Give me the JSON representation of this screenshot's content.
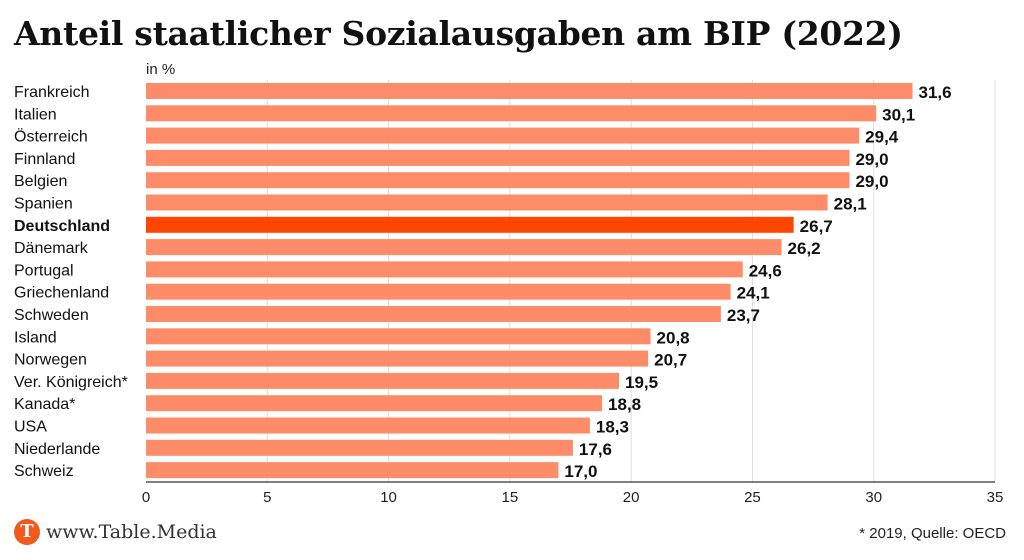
{
  "title": "Anteil staatlicher Sozialausgaben am BIP (2022)",
  "unit_label": "in %",
  "footer": {
    "logo_letter": "T",
    "logo_text": "www.Table.Media",
    "note": "* 2019, Quelle: OECD"
  },
  "colors": {
    "bar": "#ff8c69",
    "highlight": "#ff4500",
    "grid": "#dddddd",
    "logo": "#f05a1e"
  },
  "chart_data": {
    "type": "bar",
    "orientation": "horizontal",
    "categories": [
      "Frankreich",
      "Italien",
      "Österreich",
      "Finnland",
      "Belgien",
      "Spanien",
      "Deutschland",
      "Dänemark",
      "Portugal",
      "Griechenland",
      "Schweden",
      "Island",
      "Norwegen",
      "Ver. Königreich*",
      "Kanada*",
      "USA",
      "Niederlande",
      "Schweiz"
    ],
    "values": [
      31.6,
      30.1,
      29.4,
      29.0,
      29.0,
      28.1,
      26.7,
      26.2,
      24.6,
      24.1,
      23.7,
      20.8,
      20.7,
      19.5,
      18.8,
      18.3,
      17.6,
      17.0
    ],
    "value_labels": [
      "31,6",
      "30,1",
      "29,4",
      "29,0",
      "29,0",
      "28,1",
      "26,7",
      "26,2",
      "24,6",
      "24,1",
      "23,7",
      "20,8",
      "20,7",
      "19,5",
      "18,8",
      "18,3",
      "17,6",
      "17,0"
    ],
    "highlight": "Deutschland",
    "xlim": [
      0,
      35
    ],
    "xticks": [
      0,
      5,
      10,
      15,
      20,
      25,
      30,
      35
    ],
    "grid": true,
    "legend": "none"
  }
}
